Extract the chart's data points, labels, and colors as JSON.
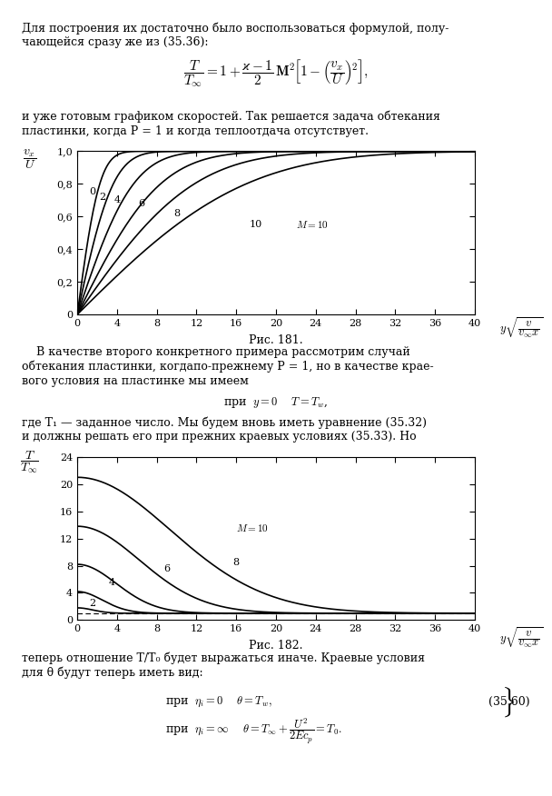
{
  "fig_width": 6.08,
  "fig_height": 8.76,
  "bg_color": "#ffffff",
  "text_color": "#000000",
  "top_text_lines": [
    "Для построения их достаточно было воспользоваться формулой, полу-",
    "чающейся сразу же из (35.36):"
  ],
  "mid_text_lines": [
    "и уже готовым графиком скоростей. Так решается задача обтекания",
    "пластинки, когда P = 1 и когда теплоотдача отсутствует."
  ],
  "fig181_caption": "Рис. 181.",
  "between_text": [
    "    В качестве второго конкретного примера рассмотрим случай",
    "обтекания пластинки, когдапо-прежнему P = 1, но в качестве крае-",
    "вого условия на пластинке мы имеем"
  ],
  "cond_text": "при  y = 0    T = T₁,",
  "after_cond_text": [
    "где T₁ — заданное число. Мы будем вновь иметь уравнение (35.32)",
    "и должны решать его при прежних краевых условиях (35.33). Но"
  ],
  "fig182_caption": "Рис. 182.",
  "bottom_text": [
    "теперь отношение T/T₀ будет выражаться иначе. Краевые условия",
    "для θ будут теперь иметь вид:"
  ],
  "chart1": {
    "M_values": [
      0,
      2,
      4,
      6,
      8,
      10
    ],
    "x_max": 40,
    "y_max": 1.0,
    "xlabel_tex": "$y\\sqrt{\\dfrac{v}{v_{\\infty}x}}$",
    "ylabel_tex": "$\\dfrac{v_x}{U}$",
    "xticks": [
      0,
      4,
      8,
      12,
      16,
      20,
      24,
      28,
      32,
      36,
      40
    ],
    "yticks": [
      0,
      0.2,
      0.4,
      0.6,
      0.8,
      1.0
    ],
    "ytick_labels": [
      "0",
      "0,2",
      "0,4",
      "0,6",
      "0,8",
      "1,0"
    ]
  },
  "chart2": {
    "M_values": [
      2,
      4,
      6,
      8,
      10
    ],
    "x_max": 40,
    "y_max": 24,
    "xlabel_tex": "$y\\sqrt{\\dfrac{v}{v_{\\infty}x}}$",
    "ylabel_tex": "$\\dfrac{T}{T_{\\infty}}$",
    "xticks": [
      0,
      4,
      8,
      12,
      16,
      20,
      24,
      28,
      32,
      36,
      40
    ],
    "yticks": [
      0,
      4,
      8,
      12,
      16,
      20,
      24
    ],
    "ytick_labels": [
      "0",
      "4",
      "8",
      "12",
      "16",
      "20",
      "24"
    ]
  }
}
